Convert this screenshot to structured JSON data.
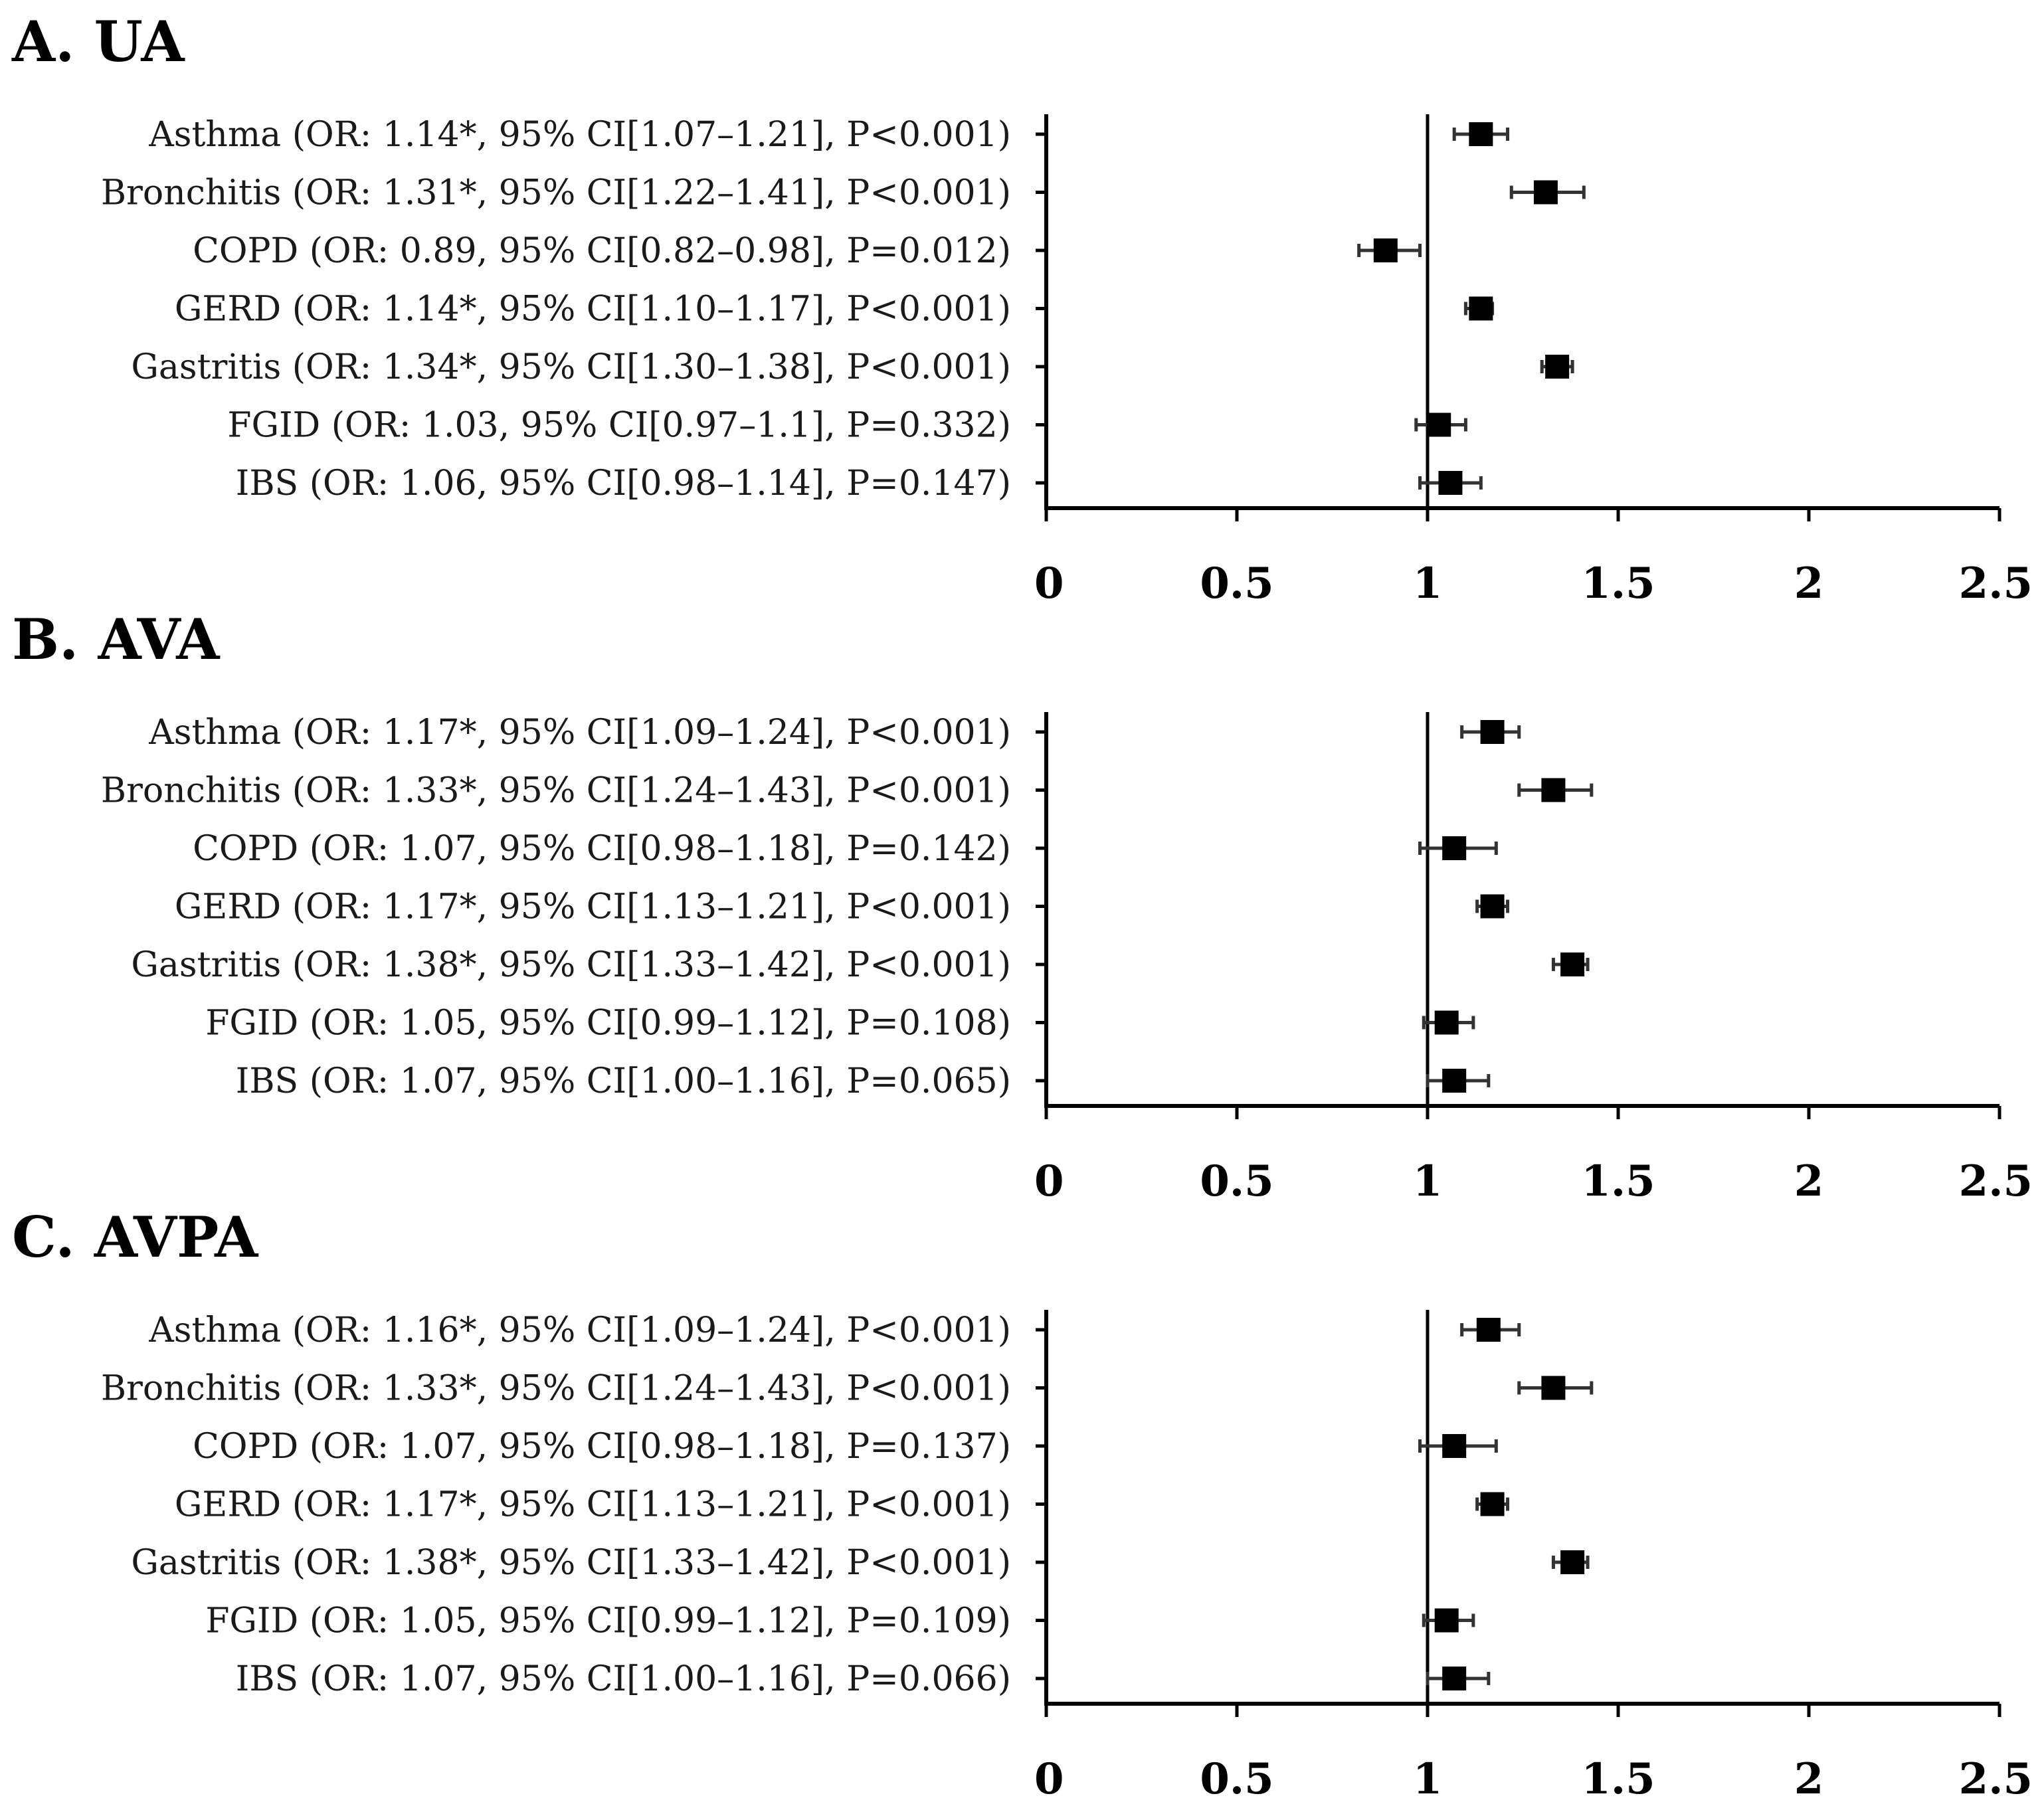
{
  "chart_data": [
    {
      "type": "forest",
      "title": "A. UA",
      "xlim": [
        0,
        2.5
      ],
      "xticks": [
        "0",
        "0.5",
        "1",
        "1.5",
        "2",
        "2.5"
      ],
      "xtick_values": [
        0,
        0.5,
        1,
        1.5,
        2,
        2.5
      ],
      "reference_line": 1,
      "rows": [
        {
          "label": "Asthma (OR: 1.14*, 95% CI[1.07–1.21], P<0.001)",
          "or": 1.14,
          "ci_low": 1.07,
          "ci_high": 1.21
        },
        {
          "label": "Bronchitis (OR: 1.31*, 95% CI[1.22–1.41], P<0.001)",
          "or": 1.31,
          "ci_low": 1.22,
          "ci_high": 1.41
        },
        {
          "label": "COPD (OR: 0.89, 95% CI[0.82–0.98], P=0.012)",
          "or": 0.89,
          "ci_low": 0.82,
          "ci_high": 0.98
        },
        {
          "label": "GERD (OR: 1.14*, 95% CI[1.10–1.17], P<0.001)",
          "or": 1.14,
          "ci_low": 1.1,
          "ci_high": 1.17
        },
        {
          "label": "Gastritis (OR: 1.34*, 95% CI[1.30–1.38], P<0.001)",
          "or": 1.34,
          "ci_low": 1.3,
          "ci_high": 1.38
        },
        {
          "label": "FGID (OR: 1.03, 95% CI[0.97–1.1], P=0.332)",
          "or": 1.03,
          "ci_low": 0.97,
          "ci_high": 1.1
        },
        {
          "label": "IBS (OR: 1.06, 95% CI[0.98–1.14], P=0.147)",
          "or": 1.06,
          "ci_low": 0.98,
          "ci_high": 1.14
        }
      ]
    },
    {
      "type": "forest",
      "title": "B. AVA",
      "xlim": [
        0,
        2.5
      ],
      "xticks": [
        "0",
        "0.5",
        "1",
        "1.5",
        "2",
        "2.5"
      ],
      "xtick_values": [
        0,
        0.5,
        1,
        1.5,
        2,
        2.5
      ],
      "reference_line": 1,
      "rows": [
        {
          "label": "Asthma (OR: 1.17*, 95% CI[1.09–1.24], P<0.001)",
          "or": 1.17,
          "ci_low": 1.09,
          "ci_high": 1.24
        },
        {
          "label": "Bronchitis (OR: 1.33*, 95% CI[1.24–1.43], P<0.001)",
          "or": 1.33,
          "ci_low": 1.24,
          "ci_high": 1.43
        },
        {
          "label": "COPD (OR: 1.07, 95% CI[0.98–1.18], P=0.142)",
          "or": 1.07,
          "ci_low": 0.98,
          "ci_high": 1.18
        },
        {
          "label": "GERD (OR: 1.17*, 95% CI[1.13–1.21], P<0.001)",
          "or": 1.17,
          "ci_low": 1.13,
          "ci_high": 1.21
        },
        {
          "label": "Gastritis (OR: 1.38*, 95% CI[1.33–1.42], P<0.001)",
          "or": 1.38,
          "ci_low": 1.33,
          "ci_high": 1.42
        },
        {
          "label": "FGID (OR: 1.05, 95% CI[0.99–1.12], P=0.108)",
          "or": 1.05,
          "ci_low": 0.99,
          "ci_high": 1.12
        },
        {
          "label": "IBS (OR: 1.07, 95% CI[1.00–1.16], P=0.065)",
          "or": 1.07,
          "ci_low": 1.0,
          "ci_high": 1.16
        }
      ]
    },
    {
      "type": "forest",
      "title": "C. AVPA",
      "xlim": [
        0,
        2.5
      ],
      "xticks": [
        "0",
        "0.5",
        "1",
        "1.5",
        "2",
        "2.5"
      ],
      "xtick_values": [
        0,
        0.5,
        1,
        1.5,
        2,
        2.5
      ],
      "reference_line": 1,
      "rows": [
        {
          "label": "Asthma (OR: 1.16*, 95% CI[1.09–1.24], P<0.001)",
          "or": 1.16,
          "ci_low": 1.09,
          "ci_high": 1.24
        },
        {
          "label": "Bronchitis (OR: 1.33*, 95% CI[1.24–1.43], P<0.001)",
          "or": 1.33,
          "ci_low": 1.24,
          "ci_high": 1.43
        },
        {
          "label": "COPD (OR: 1.07, 95% CI[0.98–1.18], P=0.137)",
          "or": 1.07,
          "ci_low": 0.98,
          "ci_high": 1.18
        },
        {
          "label": "GERD (OR: 1.17*, 95% CI[1.13–1.21], P<0.001)",
          "or": 1.17,
          "ci_low": 1.13,
          "ci_high": 1.21
        },
        {
          "label": "Gastritis (OR: 1.38*, 95% CI[1.33–1.42], P<0.001)",
          "or": 1.38,
          "ci_low": 1.33,
          "ci_high": 1.42
        },
        {
          "label": "FGID (OR: 1.05, 95% CI[0.99–1.12], P=0.109)",
          "or": 1.05,
          "ci_low": 0.99,
          "ci_high": 1.12
        },
        {
          "label": "IBS (OR: 1.07, 95% CI[1.00–1.16], P=0.066)",
          "or": 1.07,
          "ci_low": 1.0,
          "ci_high": 1.16
        }
      ]
    }
  ]
}
